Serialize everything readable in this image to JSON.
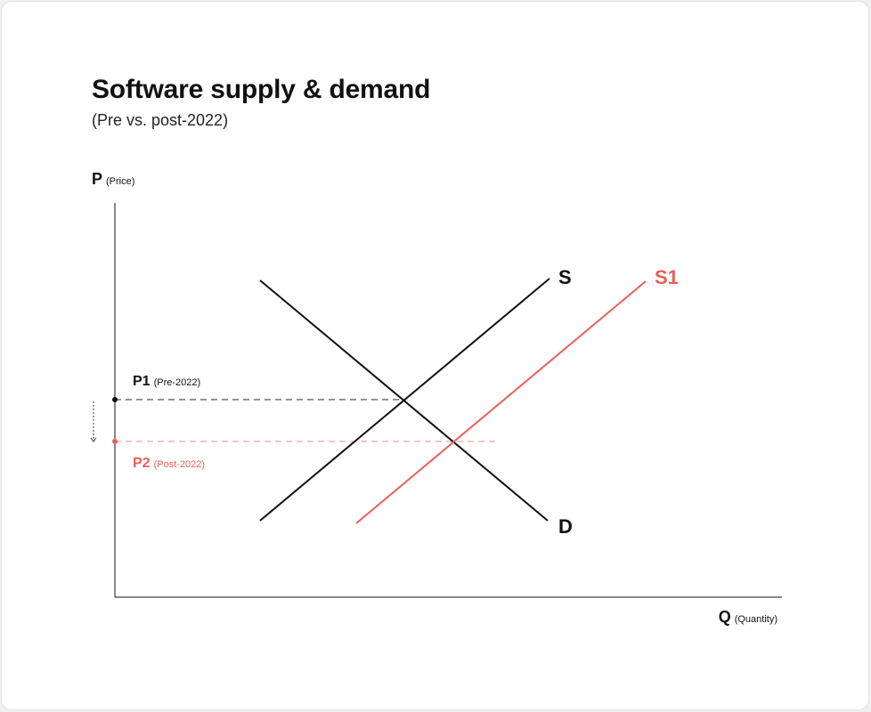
{
  "title": "Software supply & demand",
  "subtitle": "(Pre vs. post-2022)",
  "axes": {
    "y": {
      "label": "P",
      "sublabel": "(Price)"
    },
    "x": {
      "label": "Q",
      "sublabel": "(Quantity)"
    }
  },
  "prices": {
    "p1": {
      "label": "P1",
      "sublabel": "(Pre-2022)"
    },
    "p2": {
      "label": "P2",
      "sublabel": "(Post-2022)"
    }
  },
  "curves": {
    "supply": "S",
    "supply_shifted": "S1",
    "demand": "D"
  },
  "colors": {
    "highlight": "#e8615b",
    "ink": "#111111",
    "dash": "#555555",
    "dash_highlight": "#f2a29d"
  }
}
